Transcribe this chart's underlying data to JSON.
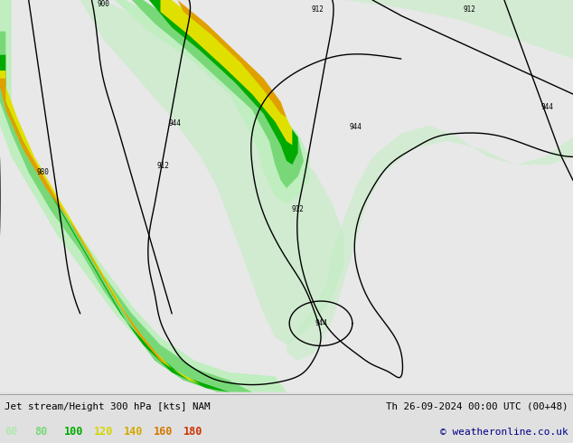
{
  "title_left": "Jet stream/Height 300 hPa [kts] NAM",
  "title_right": "Th 26-09-2024 00:00 UTC (00+48)",
  "copyright": "© weatheronline.co.uk",
  "legend_values": [
    "60",
    "80",
    "100",
    "120",
    "140",
    "160",
    "180"
  ],
  "legend_colors": [
    "#b0e8b0",
    "#78d878",
    "#00aa00",
    "#d4d400",
    "#d4a800",
    "#d47800",
    "#cc3300"
  ],
  "fig_bg": "#e0e0e0",
  "map_bg": "#e8e8e8",
  "land_color": "#ccccbb",
  "sea_color": "#ddeeff",
  "grid_color": "#aaaaaa",
  "contour_color": "#000000"
}
